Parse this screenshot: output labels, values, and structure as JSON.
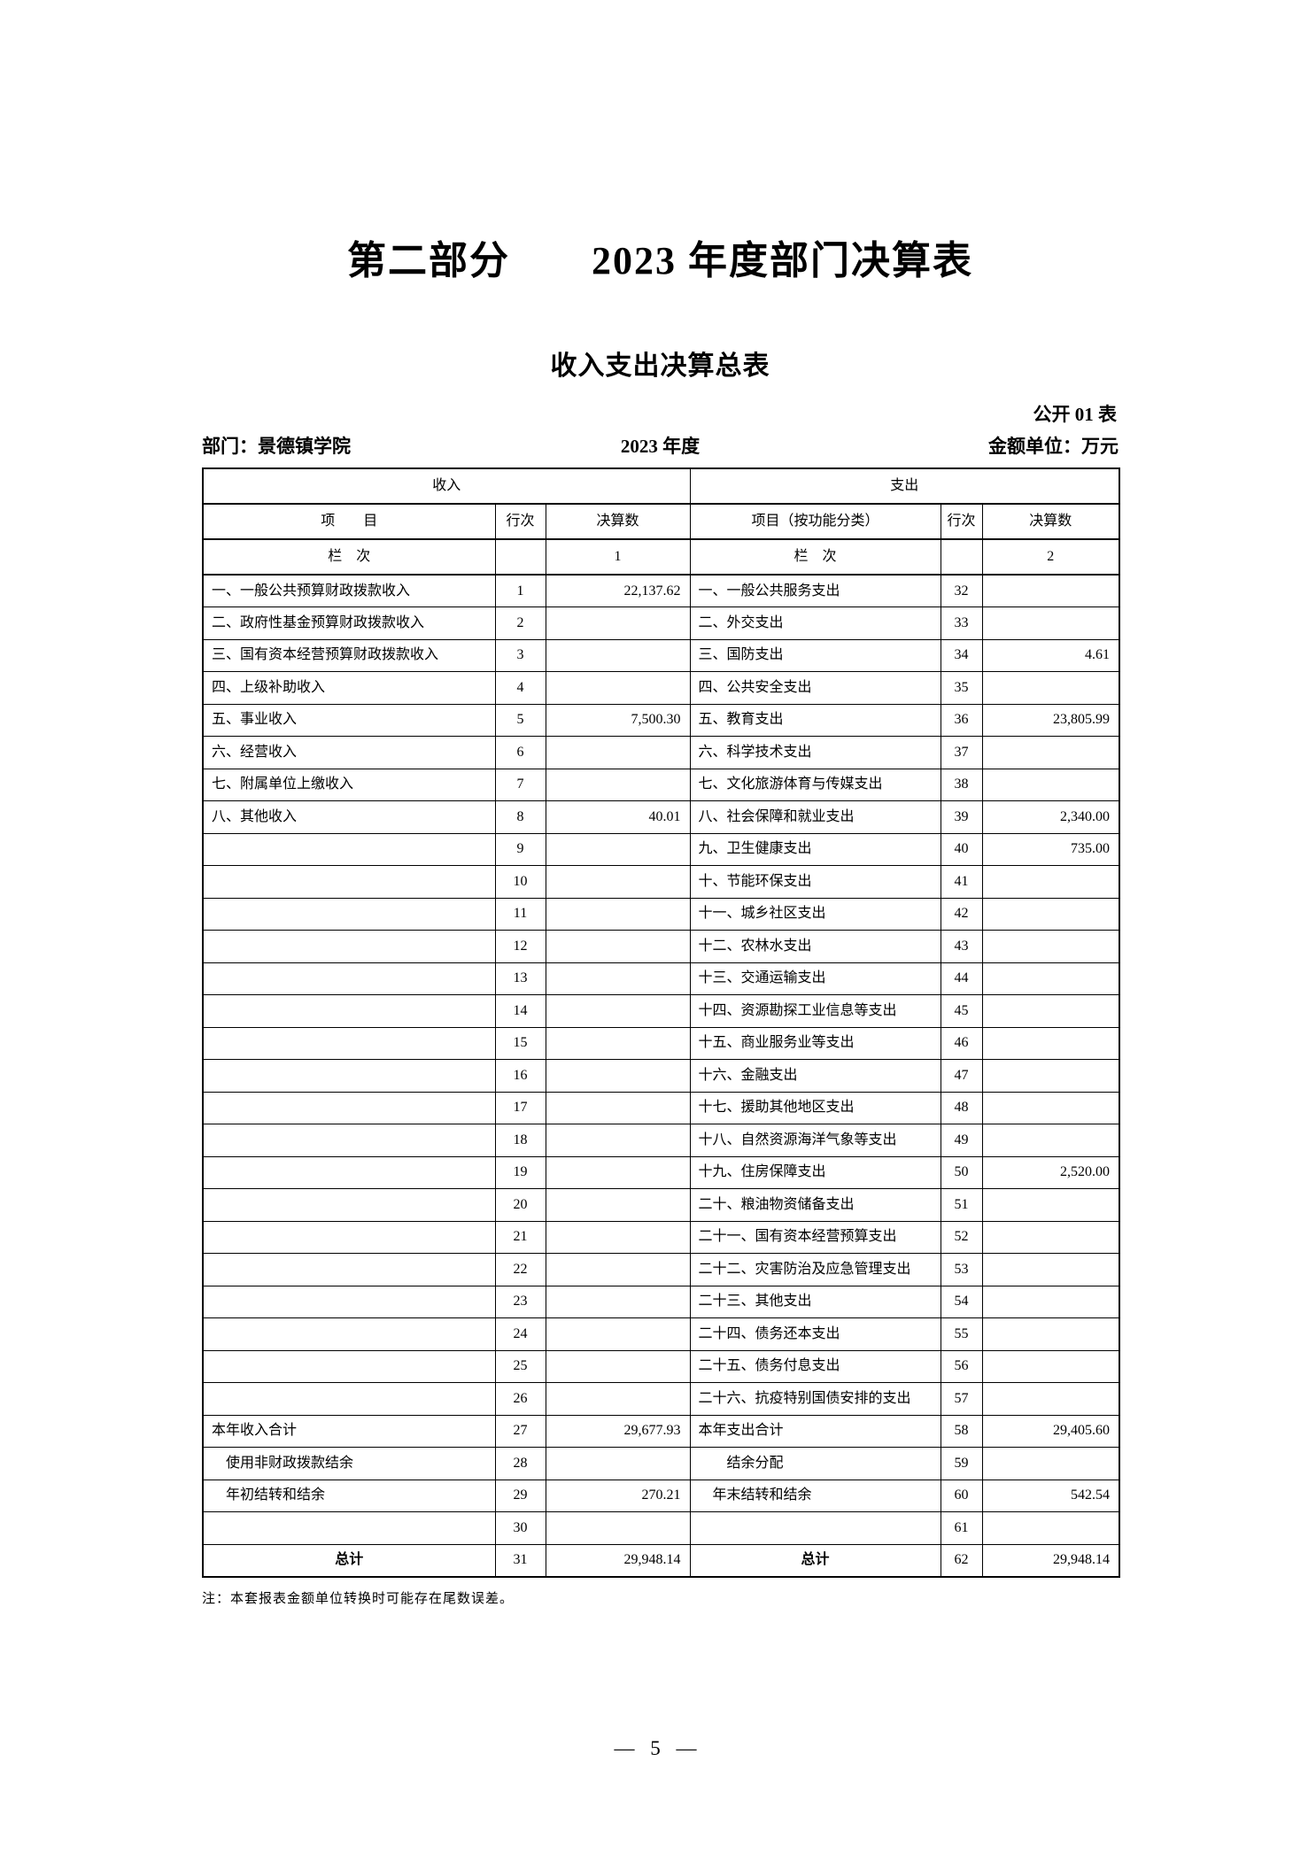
{
  "page": {
    "part_title": "第二部分　　2023 年度部门决算表",
    "table_title": "收入支出决算总表",
    "table_code": "公开 01 表",
    "department": "部门：景德镇学院",
    "year": "2023 年度",
    "unit": "金额单位：万元",
    "note": "注：本套报表金额单位转换时可能存在尾数误差。",
    "page_number": "— 5 —"
  },
  "table": {
    "income_header": "收入",
    "expense_header": "支出",
    "columns": {
      "income_item": "项　　目",
      "income_line": "行次",
      "income_value": "决算数",
      "expense_item": "项目（按功能分类）",
      "expense_line": "行次",
      "expense_value": "决算数"
    },
    "column_index_row": {
      "income_label": "栏　次",
      "income_index": "1",
      "expense_label": "栏　次",
      "expense_index": "2"
    },
    "rows": [
      {
        "in_item": "一、一般公共预算财政拨款收入",
        "in_line": "1",
        "in_val": "22,137.62",
        "ex_item": "一、一般公共服务支出",
        "ex_line": "32",
        "ex_val": ""
      },
      {
        "in_item": "二、政府性基金预算财政拨款收入",
        "in_line": "2",
        "in_val": "",
        "ex_item": "二、外交支出",
        "ex_line": "33",
        "ex_val": ""
      },
      {
        "in_item": "三、国有资本经营预算财政拨款收入",
        "in_line": "3",
        "in_val": "",
        "ex_item": "三、国防支出",
        "ex_line": "34",
        "ex_val": "4.61"
      },
      {
        "in_item": "四、上级补助收入",
        "in_line": "4",
        "in_val": "",
        "ex_item": "四、公共安全支出",
        "ex_line": "35",
        "ex_val": ""
      },
      {
        "in_item": "五、事业收入",
        "in_line": "5",
        "in_val": "7,500.30",
        "ex_item": "五、教育支出",
        "ex_line": "36",
        "ex_val": "23,805.99"
      },
      {
        "in_item": "六、经营收入",
        "in_line": "6",
        "in_val": "",
        "ex_item": "六、科学技术支出",
        "ex_line": "37",
        "ex_val": ""
      },
      {
        "in_item": "七、附属单位上缴收入",
        "in_line": "7",
        "in_val": "",
        "ex_item": "七、文化旅游体育与传媒支出",
        "ex_line": "38",
        "ex_val": ""
      },
      {
        "in_item": "八、其他收入",
        "in_line": "8",
        "in_val": "40.01",
        "ex_item": "八、社会保障和就业支出",
        "ex_line": "39",
        "ex_val": "2,340.00"
      },
      {
        "in_item": "",
        "in_line": "9",
        "in_val": "",
        "ex_item": "九、卫生健康支出",
        "ex_line": "40",
        "ex_val": "735.00"
      },
      {
        "in_item": "",
        "in_line": "10",
        "in_val": "",
        "ex_item": "十、节能环保支出",
        "ex_line": "41",
        "ex_val": ""
      },
      {
        "in_item": "",
        "in_line": "11",
        "in_val": "",
        "ex_item": "十一、城乡社区支出",
        "ex_line": "42",
        "ex_val": ""
      },
      {
        "in_item": "",
        "in_line": "12",
        "in_val": "",
        "ex_item": "十二、农林水支出",
        "ex_line": "43",
        "ex_val": ""
      },
      {
        "in_item": "",
        "in_line": "13",
        "in_val": "",
        "ex_item": "十三、交通运输支出",
        "ex_line": "44",
        "ex_val": ""
      },
      {
        "in_item": "",
        "in_line": "14",
        "in_val": "",
        "ex_item": "十四、资源勘探工业信息等支出",
        "ex_line": "45",
        "ex_val": ""
      },
      {
        "in_item": "",
        "in_line": "15",
        "in_val": "",
        "ex_item": "十五、商业服务业等支出",
        "ex_line": "46",
        "ex_val": ""
      },
      {
        "in_item": "",
        "in_line": "16",
        "in_val": "",
        "ex_item": "十六、金融支出",
        "ex_line": "47",
        "ex_val": ""
      },
      {
        "in_item": "",
        "in_line": "17",
        "in_val": "",
        "ex_item": "十七、援助其他地区支出",
        "ex_line": "48",
        "ex_val": ""
      },
      {
        "in_item": "",
        "in_line": "18",
        "in_val": "",
        "ex_item": "十八、自然资源海洋气象等支出",
        "ex_line": "49",
        "ex_val": ""
      },
      {
        "in_item": "",
        "in_line": "19",
        "in_val": "",
        "ex_item": "十九、住房保障支出",
        "ex_line": "50",
        "ex_val": "2,520.00"
      },
      {
        "in_item": "",
        "in_line": "20",
        "in_val": "",
        "ex_item": "二十、粮油物资储备支出",
        "ex_line": "51",
        "ex_val": ""
      },
      {
        "in_item": "",
        "in_line": "21",
        "in_val": "",
        "ex_item": "二十一、国有资本经营预算支出",
        "ex_line": "52",
        "ex_val": ""
      },
      {
        "in_item": "",
        "in_line": "22",
        "in_val": "",
        "ex_item": "二十二、灾害防治及应急管理支出",
        "ex_line": "53",
        "ex_val": ""
      },
      {
        "in_item": "",
        "in_line": "23",
        "in_val": "",
        "ex_item": "二十三、其他支出",
        "ex_line": "54",
        "ex_val": ""
      },
      {
        "in_item": "",
        "in_line": "24",
        "in_val": "",
        "ex_item": "二十四、债务还本支出",
        "ex_line": "55",
        "ex_val": ""
      },
      {
        "in_item": "",
        "in_line": "25",
        "in_val": "",
        "ex_item": "二十五、债务付息支出",
        "ex_line": "56",
        "ex_val": ""
      },
      {
        "in_item": "",
        "in_line": "26",
        "in_val": "",
        "ex_item": "二十六、抗疫特别国债安排的支出",
        "ex_line": "57",
        "ex_val": ""
      },
      {
        "in_item": "本年收入合计",
        "in_line": "27",
        "in_val": "29,677.93",
        "ex_item": "本年支出合计",
        "ex_line": "58",
        "ex_val": "29,405.60"
      },
      {
        "in_item": "　使用非财政拨款结余",
        "in_line": "28",
        "in_val": "",
        "ex_item": "　　结余分配",
        "ex_line": "59",
        "ex_val": ""
      },
      {
        "in_item": "　年初结转和结余",
        "in_line": "29",
        "in_val": "270.21",
        "ex_item": "　年末结转和结余",
        "ex_line": "60",
        "ex_val": "542.54"
      },
      {
        "in_item": "",
        "in_line": "30",
        "in_val": "",
        "ex_item": "",
        "ex_line": "61",
        "ex_val": ""
      },
      {
        "in_item": "总计",
        "in_center": true,
        "in_line": "31",
        "in_val": "29,948.14",
        "ex_item": "总计",
        "ex_center": true,
        "ex_line": "62",
        "ex_val": "29,948.14"
      }
    ]
  }
}
